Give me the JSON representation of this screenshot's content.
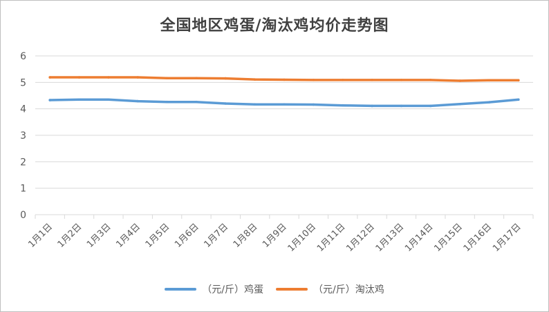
{
  "chart_data": {
    "type": "line",
    "title": "全国地区鸡蛋/淘汰鸡均价走势图",
    "categories": [
      "1月1日",
      "1月2日",
      "1月3日",
      "1月4日",
      "1月5日",
      "1月6日",
      "1月7日",
      "1月8日",
      "1月9日",
      "1月10日",
      "1月11日",
      "1月12日",
      "1月13日",
      "1月14日",
      "1月15日",
      "1月16日",
      "1月17日"
    ],
    "y_ticks": [
      "0",
      "1",
      "2",
      "3",
      "4",
      "5",
      "6"
    ],
    "ylim": [
      0,
      6
    ],
    "grid": true,
    "legend_position": "bottom",
    "series": [
      {
        "name": "（元/斤）鸡蛋",
        "color": "#5B9BD5",
        "values": [
          4.33,
          4.35,
          4.35,
          4.29,
          4.26,
          4.26,
          4.2,
          4.17,
          4.17,
          4.16,
          4.13,
          4.11,
          4.11,
          4.11,
          4.18,
          4.25,
          4.35
        ]
      },
      {
        "name": "（元/斤）淘汰鸡",
        "color": "#ED7D31",
        "values": [
          5.19,
          5.19,
          5.19,
          5.19,
          5.16,
          5.16,
          5.15,
          5.11,
          5.1,
          5.09,
          5.09,
          5.09,
          5.09,
          5.09,
          5.06,
          5.08,
          5.08
        ]
      }
    ]
  }
}
